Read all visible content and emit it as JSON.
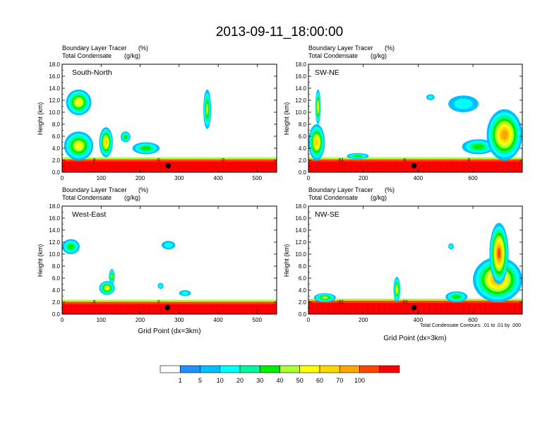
{
  "chart_data": {
    "type": "heatmap",
    "title": "2013-09-11_18:00:00",
    "left_title_line1": "Boundary Layer Tracer",
    "left_title_units1": "(%)",
    "left_title_line2": "Total Condensate",
    "left_title_units2": "(g/kg)",
    "xlabel": "Grid Point (dx=3km)",
    "ylabel": "Height (km)",
    "yticks": [
      "0.0",
      "2.0",
      "4.0",
      "6.0",
      "8.0",
      "10.0",
      "12.0",
      "14.0",
      "16.0",
      "18.0"
    ],
    "ylim": [
      0,
      18
    ],
    "contour_note": "Total Condensate Contours: .01 to .01 by .000",
    "colorbar": {
      "labels": [
        "1",
        "5",
        "10",
        "20",
        "30",
        "40",
        "50",
        "60",
        "70",
        "100"
      ],
      "colors": [
        "#ffffff",
        "#1e90ff",
        "#00bfff",
        "#00ffff",
        "#00fa9a",
        "#00ee00",
        "#adff2f",
        "#ffff00",
        "#ffd700",
        "#ffa500",
        "#ff4500",
        "#ff0000"
      ]
    },
    "panels": [
      {
        "label": "South-North",
        "xlim": [
          0,
          550
        ],
        "xticks": [
          "0",
          "100",
          "200",
          "300",
          "400",
          "500"
        ],
        "marker_x": 272,
        "boundary_layer_top_km": 2.5,
        "contour_labels": [
          "0",
          "0",
          "0"
        ],
        "cloud_patches": [
          {
            "x": [
              5,
              80
            ],
            "y": [
              2.0,
              6.8
            ],
            "max_pct": 40
          },
          {
            "x": [
              10,
              75
            ],
            "y": [
              9.5,
              13.8
            ],
            "max_pct": 40
          },
          {
            "x": [
              95,
              130
            ],
            "y": [
              2.5,
              7.5
            ],
            "max_pct": 50
          },
          {
            "x": [
              150,
              175
            ],
            "y": [
              5.0,
              6.8
            ],
            "max_pct": 20
          },
          {
            "x": [
              180,
              250
            ],
            "y": [
              3.0,
              5.0
            ],
            "max_pct": 20
          },
          {
            "x": [
              362,
              382
            ],
            "y": [
              7.2,
              13.8
            ],
            "max_pct": 30
          }
        ]
      },
      {
        "label": "SW-NE",
        "xlim": [
          0,
          780
        ],
        "xticks": [
          "0",
          "200",
          "400",
          "600"
        ],
        "marker_x": 385,
        "boundary_layer_top_km": 2.5,
        "contour_labels": [
          ".01",
          "0",
          "0"
        ],
        "cloud_patches": [
          {
            "x": [
              0,
              60
            ],
            "y": [
              2.0,
              8.0
            ],
            "max_pct": 50
          },
          {
            "x": [
              25,
              45
            ],
            "y": [
              8.0,
              13.8
            ],
            "max_pct": 40
          },
          {
            "x": [
              140,
              220
            ],
            "y": [
              2.2,
              3.2
            ],
            "max_pct": 20
          },
          {
            "x": [
              430,
              460
            ],
            "y": [
              12.0,
              13.0
            ],
            "max_pct": 5
          },
          {
            "x": [
              510,
              620
            ],
            "y": [
              10.0,
              12.8
            ],
            "max_pct": 5
          },
          {
            "x": [
              560,
              680
            ],
            "y": [
              3.0,
              5.5
            ],
            "max_pct": 20
          },
          {
            "x": [
              650,
              780
            ],
            "y": [
              2.0,
              10.5
            ],
            "max_pct": 60
          }
        ]
      },
      {
        "label": "West-East",
        "xlim": [
          0,
          550
        ],
        "xticks": [
          "0",
          "100",
          "200",
          "300",
          "400",
          "500"
        ],
        "marker_x": 270,
        "boundary_layer_top_km": 2.4,
        "contour_labels": [
          "0",
          "0"
        ],
        "cloud_patches": [
          {
            "x": [
              0,
              45
            ],
            "y": [
              10.0,
              12.5
            ],
            "max_pct": 20
          },
          {
            "x": [
              95,
              135
            ],
            "y": [
              3.2,
              5.5
            ],
            "max_pct": 40
          },
          {
            "x": [
              120,
              135
            ],
            "y": [
              5.0,
              7.5
            ],
            "max_pct": 30
          },
          {
            "x": [
              255,
              290
            ],
            "y": [
              10.8,
              12.2
            ],
            "max_pct": 5
          },
          {
            "x": [
              245,
              260
            ],
            "y": [
              4.2,
              5.2
            ],
            "max_pct": 5
          },
          {
            "x": [
              300,
              330
            ],
            "y": [
              3.0,
              4.0
            ],
            "max_pct": 5
          }
        ]
      },
      {
        "label": "NW-SE",
        "xlim": [
          0,
          780
        ],
        "xticks": [
          "0",
          "200",
          "400",
          "600"
        ],
        "marker_x": 385,
        "boundary_layer_top_km": 2.6,
        "contour_labels": [
          ".01",
          ".01"
        ],
        "cloud_patches": [
          {
            "x": [
              20,
              100
            ],
            "y": [
              2.0,
              3.5
            ],
            "max_pct": 30
          },
          {
            "x": [
              310,
              335
            ],
            "y": [
              2.0,
              6.2
            ],
            "max_pct": 40
          },
          {
            "x": [
              500,
              580
            ],
            "y": [
              2.0,
              3.8
            ],
            "max_pct": 20
          },
          {
            "x": [
              600,
              780
            ],
            "y": [
              2.0,
              9.5
            ],
            "max_pct": 60
          },
          {
            "x": [
              660,
              730
            ],
            "y": [
              5.0,
              15.2
            ],
            "max_pct": 70
          },
          {
            "x": [
              510,
              530
            ],
            "y": [
              10.8,
              11.8
            ],
            "max_pct": 5
          }
        ]
      }
    ]
  }
}
